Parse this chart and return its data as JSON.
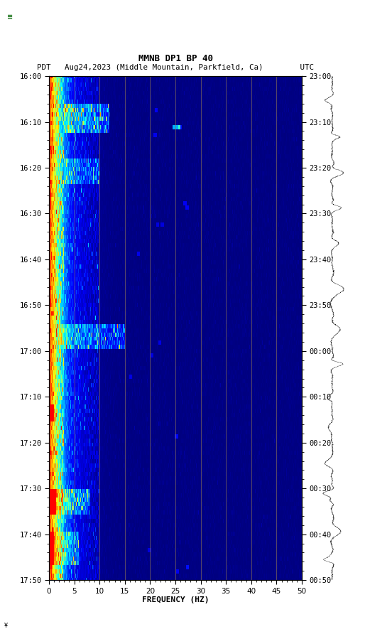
{
  "title_line1": "MMNB DP1 BP 40",
  "title_line2": "PDT   Aug24,2023 (Middle Mountain, Parkfield, Ca)        UTC",
  "xlabel": "FREQUENCY (HZ)",
  "freq_min": 0,
  "freq_max": 50,
  "freq_ticks": [
    0,
    5,
    10,
    15,
    20,
    25,
    30,
    35,
    40,
    45,
    50
  ],
  "ytick_labels_left": [
    "16:00",
    "16:10",
    "16:20",
    "16:30",
    "16:40",
    "16:50",
    "17:00",
    "17:10",
    "17:20",
    "17:30",
    "17:40",
    "17:50"
  ],
  "ytick_labels_right": [
    "23:00",
    "23:10",
    "23:20",
    "23:30",
    "23:40",
    "23:50",
    "00:00",
    "00:10",
    "00:20",
    "00:30",
    "00:40",
    "00:50"
  ],
  "n_time_steps": 120,
  "n_freq_steps": 500,
  "background_color": "#ffffff",
  "vertical_line_color": "#8B7355",
  "vertical_line_freqs": [
    5,
    10,
    15,
    20,
    25,
    30,
    35,
    40,
    45
  ],
  "fig_width": 5.52,
  "fig_height": 8.92,
  "dpi": 100,
  "cmap_colors": [
    [
      0.0,
      "#000080"
    ],
    [
      0.05,
      "#0000CD"
    ],
    [
      0.12,
      "#0000FF"
    ],
    [
      0.22,
      "#0080FF"
    ],
    [
      0.35,
      "#00FFFF"
    ],
    [
      0.55,
      "#FFFF00"
    ],
    [
      0.75,
      "#FF8000"
    ],
    [
      1.0,
      "#FF0000"
    ]
  ]
}
